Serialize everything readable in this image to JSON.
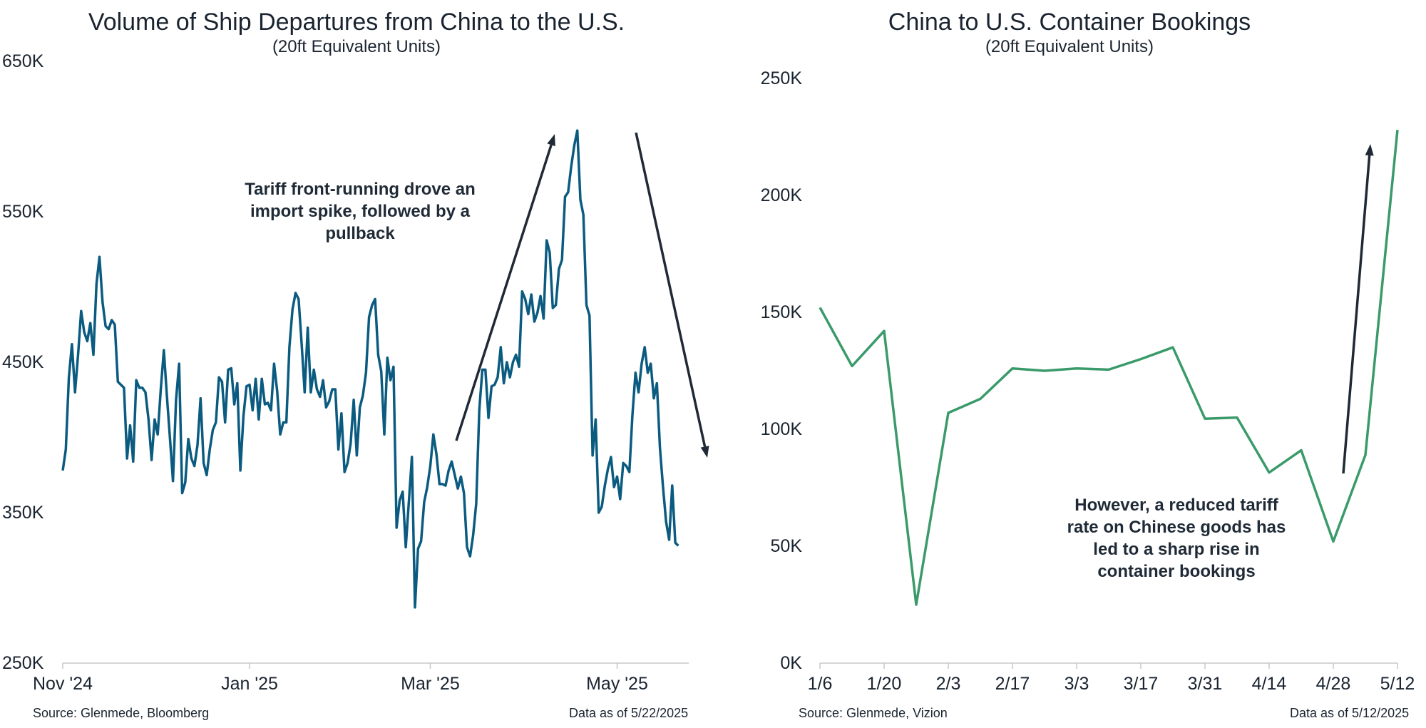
{
  "left": {
    "title": "Volume of Ship Departures from China to the U.S.",
    "subtitle": "(20ft Equivalent Units)",
    "annotation": "Tariff front-running drove an import spike, followed by a pullback",
    "source": "Source: Glenmede, Bloomberg",
    "as_of": "Data as of 5/22/2025"
  },
  "right": {
    "title": "China to U.S. Container Bookings",
    "subtitle": "(20ft Equivalent Units)",
    "annotation": "However, a reduced tariff rate on Chinese goods has led to a sharp rise in container bookings",
    "source": "Source: Glenmede, Vizion",
    "as_of": "Data as of 5/12/2025"
  },
  "colors": {
    "left_line": "#0b5b80",
    "right_line": "#3a9a6a",
    "arrow": "#1f2a36",
    "axis": "#c8c8c8"
  },
  "chart_data": [
    {
      "type": "line",
      "title": "Volume of Ship Departures from China to the U.S.",
      "subtitle": "(20ft Equivalent Units)",
      "xlabel": "",
      "ylabel": "",
      "ylim": [
        250000,
        650000
      ],
      "yticks": [
        250000,
        350000,
        450000,
        550000,
        650000
      ],
      "ytick_labels": [
        "250K",
        "350K",
        "450K",
        "550K",
        "650K"
      ],
      "xtick_labels": [
        "Nov '24",
        "Jan '25",
        "Mar '25",
        "May '25"
      ],
      "xtick_dates": [
        "2024-11-01",
        "2025-01-01",
        "2025-03-01",
        "2025-05-01"
      ],
      "x_range": [
        "2024-11-01",
        "2025-05-22"
      ],
      "grid": false,
      "series": [
        {
          "values": [
            [
              "2024-11-01",
              378000
            ],
            [
              "2024-11-02",
              392000
            ],
            [
              "2024-11-03",
              440000
            ],
            [
              "2024-11-04",
              462000
            ],
            [
              "2024-11-05",
              430000
            ],
            [
              "2024-11-06",
              455000
            ],
            [
              "2024-11-07",
              484000
            ],
            [
              "2024-11-08",
              470000
            ],
            [
              "2024-11-09",
              464000
            ],
            [
              "2024-11-10",
              476000
            ],
            [
              "2024-11-11",
              455000
            ],
            [
              "2024-11-12",
              502000
            ],
            [
              "2024-11-13",
              520000
            ],
            [
              "2024-11-14",
              490000
            ],
            [
              "2024-11-15",
              474000
            ],
            [
              "2024-11-16",
              472000
            ],
            [
              "2024-11-17",
              478000
            ],
            [
              "2024-11-18",
              475000
            ],
            [
              "2024-11-19",
              437000
            ],
            [
              "2024-11-20",
              435000
            ],
            [
              "2024-11-21",
              433000
            ],
            [
              "2024-11-22",
              386000
            ],
            [
              "2024-11-23",
              408000
            ],
            [
              "2024-11-24",
              384000
            ],
            [
              "2024-11-25",
              438000
            ],
            [
              "2024-11-26",
              433000
            ],
            [
              "2024-11-27",
              433000
            ],
            [
              "2024-11-28",
              430000
            ],
            [
              "2024-11-29",
              412000
            ],
            [
              "2024-11-30",
              385000
            ],
            [
              "2024-12-01",
              412000
            ],
            [
              "2024-12-02",
              402000
            ],
            [
              "2024-12-03",
              432000
            ],
            [
              "2024-12-04",
              458000
            ],
            [
              "2024-12-05",
              428000
            ],
            [
              "2024-12-06",
              400000
            ],
            [
              "2024-12-07",
              371000
            ],
            [
              "2024-12-08",
              425000
            ],
            [
              "2024-12-09",
              449000
            ],
            [
              "2024-12-10",
              363000
            ],
            [
              "2024-12-11",
              370000
            ],
            [
              "2024-12-12",
              399000
            ],
            [
              "2024-12-13",
              386000
            ],
            [
              "2024-12-14",
              381000
            ],
            [
              "2024-12-15",
              395000
            ],
            [
              "2024-12-16",
              426000
            ],
            [
              "2024-12-17",
              383000
            ],
            [
              "2024-12-18",
              375000
            ],
            [
              "2024-12-19",
              392000
            ],
            [
              "2024-12-20",
              405000
            ],
            [
              "2024-12-21",
              410000
            ],
            [
              "2024-12-22",
              440000
            ],
            [
              "2024-12-23",
              437000
            ],
            [
              "2024-12-24",
              410000
            ],
            [
              "2024-12-25",
              445000
            ],
            [
              "2024-12-26",
              446000
            ],
            [
              "2024-12-27",
              422000
            ],
            [
              "2024-12-28",
              436000
            ],
            [
              "2024-12-29",
              378000
            ],
            [
              "2024-12-30",
              414000
            ],
            [
              "2024-12-31",
              434000
            ],
            [
              "2025-01-01",
              435000
            ],
            [
              "2025-01-02",
              418000
            ],
            [
              "2025-01-03",
              439000
            ],
            [
              "2025-01-04",
              412000
            ],
            [
              "2025-01-05",
              439000
            ],
            [
              "2025-01-06",
              422000
            ],
            [
              "2025-01-07",
              423000
            ],
            [
              "2025-01-08",
              418000
            ],
            [
              "2025-01-09",
              449000
            ],
            [
              "2025-01-10",
              431000
            ],
            [
              "2025-01-11",
              402000
            ],
            [
              "2025-01-12",
              410000
            ],
            [
              "2025-01-13",
              410000
            ],
            [
              "2025-01-14",
              460000
            ],
            [
              "2025-01-15",
              485000
            ],
            [
              "2025-01-16",
              496000
            ],
            [
              "2025-01-17",
              492000
            ],
            [
              "2025-01-18",
              462000
            ],
            [
              "2025-01-19",
              430000
            ],
            [
              "2025-01-20",
              473000
            ],
            [
              "2025-01-21",
              430000
            ],
            [
              "2025-01-22",
              445000
            ],
            [
              "2025-01-23",
              432000
            ],
            [
              "2025-01-24",
              427000
            ],
            [
              "2025-01-25",
              438000
            ],
            [
              "2025-01-26",
              420000
            ],
            [
              "2025-01-27",
              424000
            ],
            [
              "2025-01-28",
              432000
            ],
            [
              "2025-01-29",
              432000
            ],
            [
              "2025-01-30",
              392000
            ],
            [
              "2025-01-31",
              416000
            ],
            [
              "2025-02-01",
              377000
            ],
            [
              "2025-02-02",
              383000
            ],
            [
              "2025-02-03",
              396000
            ],
            [
              "2025-02-04",
              425000
            ],
            [
              "2025-02-05",
              388000
            ],
            [
              "2025-02-06",
              420000
            ],
            [
              "2025-02-07",
              428000
            ],
            [
              "2025-02-08",
              443000
            ],
            [
              "2025-02-09",
              480000
            ],
            [
              "2025-02-10",
              488000
            ],
            [
              "2025-02-11",
              492000
            ],
            [
              "2025-02-12",
              455000
            ],
            [
              "2025-02-13",
              444000
            ],
            [
              "2025-02-14",
              402000
            ],
            [
              "2025-02-15",
              453000
            ],
            [
              "2025-02-16",
              438000
            ],
            [
              "2025-02-17",
              447000
            ],
            [
              "2025-02-18",
              340000
            ],
            [
              "2025-02-19",
              358000
            ],
            [
              "2025-02-20",
              364000
            ],
            [
              "2025-02-21",
              327000
            ],
            [
              "2025-02-22",
              357000
            ],
            [
              "2025-02-23",
              387000
            ],
            [
              "2025-02-24",
              287000
            ],
            [
              "2025-02-25",
              326000
            ],
            [
              "2025-02-26",
              331000
            ],
            [
              "2025-02-27",
              357000
            ],
            [
              "2025-02-28",
              367000
            ],
            [
              "2025-03-01",
              381000
            ],
            [
              "2025-03-02",
              402000
            ],
            [
              "2025-03-03",
              389000
            ],
            [
              "2025-03-04",
              369000
            ],
            [
              "2025-03-05",
              369000
            ],
            [
              "2025-03-06",
              368000
            ],
            [
              "2025-03-07",
              378000
            ],
            [
              "2025-03-08",
              384000
            ],
            [
              "2025-03-09",
              375000
            ],
            [
              "2025-03-10",
              366000
            ],
            [
              "2025-03-11",
              374000
            ],
            [
              "2025-03-12",
              363000
            ],
            [
              "2025-03-13",
              327000
            ],
            [
              "2025-03-14",
              321000
            ],
            [
              "2025-03-15",
              335000
            ],
            [
              "2025-03-16",
              356000
            ],
            [
              "2025-03-17",
              418000
            ],
            [
              "2025-03-18",
              445000
            ],
            [
              "2025-03-19",
              445000
            ],
            [
              "2025-03-20",
              413000
            ],
            [
              "2025-03-21",
              434000
            ],
            [
              "2025-03-22",
              435000
            ],
            [
              "2025-03-23",
              440000
            ],
            [
              "2025-03-24",
              460000
            ],
            [
              "2025-03-25",
              436000
            ],
            [
              "2025-03-26",
              450000
            ],
            [
              "2025-03-27",
              440000
            ],
            [
              "2025-03-28",
              450000
            ],
            [
              "2025-03-29",
              455000
            ],
            [
              "2025-03-30",
              447000
            ],
            [
              "2025-03-31",
              497000
            ],
            [
              "2025-04-01",
              492000
            ],
            [
              "2025-04-02",
              482000
            ],
            [
              "2025-04-03",
              495000
            ],
            [
              "2025-04-04",
              477000
            ],
            [
              "2025-04-05",
              483000
            ],
            [
              "2025-04-06",
              494000
            ],
            [
              "2025-04-07",
              479000
            ],
            [
              "2025-04-08",
              531000
            ],
            [
              "2025-04-09",
              523000
            ],
            [
              "2025-04-10",
              486000
            ],
            [
              "2025-04-11",
              488000
            ],
            [
              "2025-04-12",
              512000
            ],
            [
              "2025-04-13",
              518000
            ],
            [
              "2025-04-14",
              560000
            ],
            [
              "2025-04-15",
              563000
            ],
            [
              "2025-04-16",
              580000
            ],
            [
              "2025-04-17",
              594000
            ],
            [
              "2025-04-18",
              604000
            ],
            [
              "2025-04-19",
              558000
            ],
            [
              "2025-04-20",
              548000
            ],
            [
              "2025-04-21",
              488000
            ],
            [
              "2025-04-22",
              481000
            ],
            [
              "2025-04-23",
              388000
            ],
            [
              "2025-04-24",
              412000
            ],
            [
              "2025-04-25",
              350000
            ],
            [
              "2025-04-26",
              354000
            ],
            [
              "2025-04-27",
              368000
            ],
            [
              "2025-04-28",
              379000
            ],
            [
              "2025-04-29",
              387000
            ],
            [
              "2025-04-30",
              367000
            ],
            [
              "2025-05-01",
              374000
            ],
            [
              "2025-05-02",
              359000
            ],
            [
              "2025-05-03",
              383000
            ],
            [
              "2025-05-04",
              381000
            ],
            [
              "2025-05-05",
              377000
            ],
            [
              "2025-05-06",
              415000
            ],
            [
              "2025-05-07",
              443000
            ],
            [
              "2025-05-08",
              430000
            ],
            [
              "2025-05-09",
              449000
            ],
            [
              "2025-05-10",
              460000
            ],
            [
              "2025-05-11",
              443000
            ],
            [
              "2025-05-12",
              449000
            ],
            [
              "2025-05-13",
              426000
            ],
            [
              "2025-05-14",
              436000
            ],
            [
              "2025-05-15",
              393000
            ],
            [
              "2025-05-16",
              367000
            ],
            [
              "2025-05-17",
              344000
            ],
            [
              "2025-05-18",
              332000
            ],
            [
              "2025-05-19",
              368000
            ],
            [
              "2025-05-20",
              330000
            ],
            [
              "2025-05-21",
              328000
            ]
          ]
        }
      ]
    },
    {
      "type": "line",
      "title": "China to U.S. Container Bookings",
      "subtitle": "(20ft Equivalent Units)",
      "xlabel": "",
      "ylabel": "",
      "ylim": [
        0,
        250000
      ],
      "yticks": [
        0,
        50000,
        100000,
        150000,
        200000,
        250000
      ],
      "ytick_labels": [
        "0K",
        "50K",
        "100K",
        "150K",
        "200K",
        "250K"
      ],
      "categories": [
        "1/6",
        "1/13",
        "1/20",
        "1/27",
        "2/3",
        "2/10",
        "2/17",
        "2/24",
        "3/3",
        "3/10",
        "3/17",
        "3/24",
        "3/31",
        "4/7",
        "4/14",
        "4/21",
        "4/28",
        "5/5",
        "5/12"
      ],
      "xtick_labels": [
        "1/6",
        "1/20",
        "2/3",
        "2/17",
        "3/3",
        "3/17",
        "3/31",
        "4/14",
        "4/28",
        "5/12"
      ],
      "grid": false,
      "series": [
        {
          "values": [
            152000,
            127000,
            142000,
            25000,
            107000,
            113000,
            126000,
            125000,
            126000,
            125500,
            130000,
            135000,
            104500,
            105000,
            81500,
            91000,
            52000,
            89000,
            228000
          ]
        }
      ]
    }
  ]
}
